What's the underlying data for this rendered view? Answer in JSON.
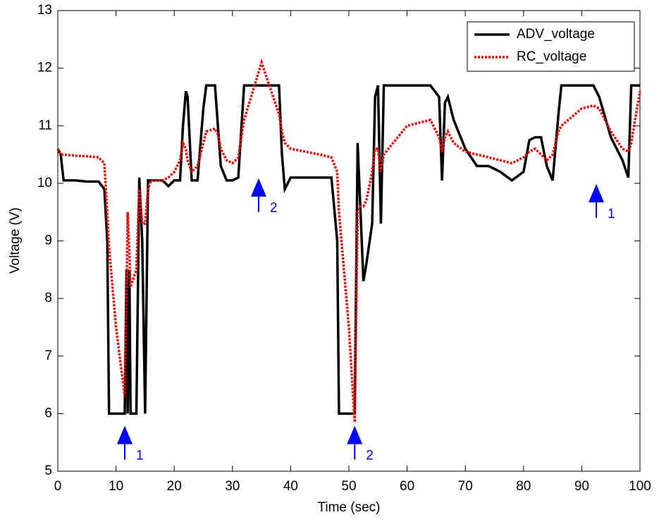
{
  "chart_data": {
    "type": "line",
    "xlabel": "Time (sec)",
    "ylabel": "Voltage (V)",
    "x": [
      0,
      0.5,
      1,
      3,
      5,
      7,
      8,
      8.5,
      8.8,
      10,
      11.5,
      11.8,
      12,
      12.3,
      12.5,
      13.5,
      14,
      14.5,
      15,
      15.5,
      16,
      18,
      19,
      20,
      21,
      21.5,
      22,
      22.3,
      23,
      24,
      25,
      25.5,
      27,
      27.5,
      28,
      29,
      30,
      31,
      32,
      35,
      38,
      38.5,
      39,
      40,
      45,
      47,
      48,
      48.3,
      50,
      51,
      51.5,
      52,
      52.5,
      53,
      54,
      54.5,
      55,
      55.5,
      56,
      60,
      64,
      65.5,
      66,
      66.5,
      67,
      68,
      70,
      72,
      74,
      76,
      78,
      80,
      81,
      82,
      83,
      84,
      85,
      86,
      86.5,
      90,
      92,
      93,
      95,
      97,
      98,
      98.5,
      100
    ],
    "series": [
      {
        "name": "ADV_voltage",
        "color": "#000000",
        "style": "solid",
        "values": [
          10.6,
          10.5,
          10.05,
          10.05,
          10.03,
          10.03,
          9.9,
          9.0,
          6.0,
          6.0,
          6.0,
          8.5,
          6.0,
          8.5,
          6.0,
          6.0,
          10.1,
          9.0,
          6.0,
          10.05,
          10.05,
          10.05,
          9.95,
          10.05,
          10.05,
          11.0,
          11.6,
          11.5,
          10.05,
          10.05,
          11.3,
          11.7,
          11.7,
          11.0,
          10.3,
          10.05,
          10.05,
          10.1,
          11.7,
          11.7,
          11.7,
          10.5,
          9.9,
          10.1,
          10.1,
          10.1,
          9.0,
          6.0,
          6.0,
          6.0,
          10.7,
          9.5,
          8.3,
          8.6,
          9.3,
          11.5,
          11.7,
          9.3,
          11.7,
          11.7,
          11.7,
          11.5,
          10.05,
          11.4,
          11.5,
          11.1,
          10.6,
          10.3,
          10.3,
          10.2,
          10.05,
          10.2,
          10.75,
          10.8,
          10.8,
          10.3,
          10.05,
          11.2,
          11.7,
          11.7,
          11.7,
          11.5,
          10.8,
          10.4,
          10.1,
          11.7,
          11.7
        ]
      },
      {
        "name": "RC_voltage",
        "color": "#ff0000",
        "style": "dotted",
        "values": [
          10.6,
          10.5,
          10.5,
          10.48,
          10.47,
          10.45,
          10.35,
          9.5,
          8.9,
          7.5,
          6.3,
          8.0,
          9.5,
          8.8,
          8.2,
          8.5,
          9.9,
          9.3,
          9.3,
          9.9,
          10.05,
          10.05,
          10.1,
          10.2,
          10.4,
          10.7,
          10.6,
          10.4,
          10.2,
          10.3,
          10.7,
          10.9,
          10.95,
          10.85,
          10.6,
          10.4,
          10.35,
          10.45,
          11.1,
          12.1,
          11.2,
          10.9,
          10.7,
          10.6,
          10.5,
          10.45,
          10.2,
          9.5,
          7.5,
          5.85,
          9.5,
          9.6,
          9.6,
          9.7,
          10.2,
          10.6,
          10.6,
          10.2,
          10.5,
          11.0,
          11.1,
          10.8,
          10.55,
          10.8,
          10.9,
          10.7,
          10.55,
          10.5,
          10.45,
          10.4,
          10.35,
          10.45,
          10.55,
          10.6,
          10.5,
          10.4,
          10.5,
          10.9,
          11.0,
          11.3,
          11.35,
          11.3,
          10.9,
          10.6,
          10.55,
          10.7,
          11.6
        ]
      }
    ],
    "xlim": [
      0,
      100
    ],
    "xticks": [
      0,
      10,
      20,
      30,
      40,
      50,
      60,
      70,
      80,
      90,
      100
    ],
    "ylim": [
      5,
      13
    ],
    "yticks": [
      5,
      6,
      7,
      8,
      9,
      10,
      11,
      12,
      13
    ],
    "grid": false,
    "legend": "top-right",
    "annotations": [
      {
        "text": "1",
        "x": 11.5,
        "y": 5.2,
        "color": "#0000ff"
      },
      {
        "text": "2",
        "x": 34.5,
        "y": 9.5,
        "color": "#0000ff"
      },
      {
        "text": "2",
        "x": 51,
        "y": 5.2,
        "color": "#0000ff"
      },
      {
        "text": "1",
        "x": 92.5,
        "y": 9.4,
        "color": "#0000ff"
      }
    ]
  }
}
